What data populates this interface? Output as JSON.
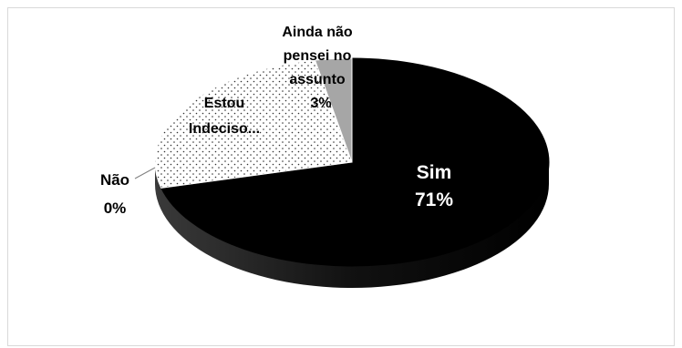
{
  "chart_data": {
    "type": "pie",
    "title": "",
    "slices": [
      {
        "label": "Sim",
        "value_label": "71%",
        "value": 71,
        "color": "#000000",
        "label_color": "#ffffff"
      },
      {
        "label": "Não",
        "value_label": "0%",
        "value": 0,
        "color": "#595959",
        "label_color": "#000000"
      },
      {
        "label": "Estou Indeciso...",
        "value_label": "",
        "value": 26,
        "color": "#ffffff",
        "pattern": "dotted",
        "label_color": "#000000"
      },
      {
        "label": "Ainda não pensei no assunto",
        "value_label": "3%",
        "value": 3,
        "color": "#a6a6a6",
        "label_color": "#000000"
      }
    ],
    "legend": "none",
    "style": "3d"
  },
  "labels": {
    "sim_name": "Sim",
    "sim_pct": "71%",
    "nao_name": "Não",
    "nao_pct": "0%",
    "estou_l1": "Estou",
    "estou_l2": "Indeciso...",
    "ainda_l1": "Ainda não",
    "ainda_l2": "pensei no",
    "ainda_l3": "assunto",
    "ainda_pct": "3%"
  }
}
